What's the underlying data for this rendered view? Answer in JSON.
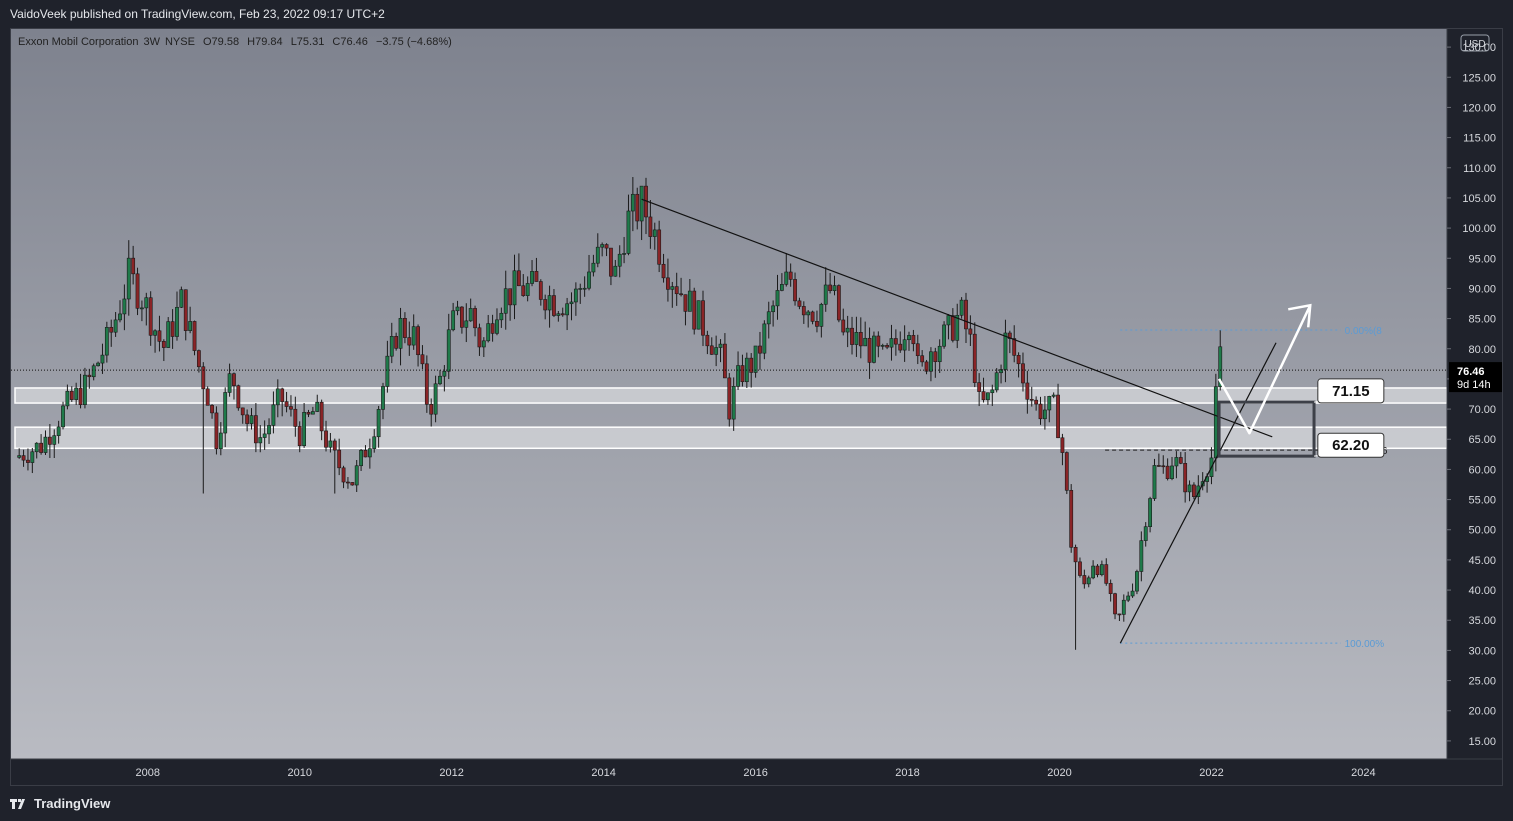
{
  "publication": {
    "text": "VaidoVeek published on TradingView.com, Feb 23, 2022 09:17 UTC+2"
  },
  "footer": {
    "brand": "TradingView",
    "logo_icon": "tradingview-logo-icon"
  },
  "symbol_bar": {
    "name": "Exxon Mobil Corporation",
    "interval": "3W",
    "exchange": "NYSE",
    "open": "O79.58",
    "high": "H79.84",
    "low": "L75.31",
    "close": "C76.46",
    "change": "−3.75 (−4.68%)"
  },
  "currency_button": "USD",
  "price_tag": {
    "value": "76.46",
    "countdown": "9d 14h"
  },
  "colors": {
    "bg_top": "#7e828e",
    "bg_bottom": "#b9bbc2",
    "up_candle": "#1f7a4a",
    "down_candle": "#8a2427",
    "zone_fill": "#d6d7db",
    "zone_stroke": "#ffffff",
    "trendline": "#111111",
    "projection_arrow": "#ffffff",
    "fib_level": "#5b9bd5",
    "axis_bg": "#1f222b",
    "axis_text": "#d7d9de"
  },
  "annotations": {
    "label_upper": "71.15",
    "label_lower": "62.20",
    "fib_0": "0.00%(8",
    "fib_382": "38.20%(6",
    "fib_100": "100.00%"
  },
  "chart_data": {
    "type": "candlestick",
    "title": "Exxon Mobil Corporation, 3W, NYSE",
    "xlabel": "",
    "ylabel": "",
    "x_ticks": [
      "2008",
      "2010",
      "2012",
      "2014",
      "2016",
      "2018",
      "2020",
      "2022",
      "2024"
    ],
    "y_ticks": [
      "15.00",
      "20.00",
      "25.00",
      "30.00",
      "35.00",
      "40.00",
      "45.00",
      "50.00",
      "55.00",
      "60.00",
      "65.00",
      "70.00",
      "75.00",
      "80.00",
      "85.00",
      "90.00",
      "95.00",
      "100.00",
      "105.00",
      "110.00",
      "115.00",
      "120.00",
      "125.00",
      "130.00"
    ],
    "ylim": [
      12,
      133
    ],
    "xlim": [
      2006.2,
      2025.1
    ],
    "grid": false,
    "price_line": 76.46,
    "close_anchors": [
      [
        2006.25,
        62
      ],
      [
        2006.6,
        64
      ],
      [
        2006.9,
        70
      ],
      [
        2007.2,
        74
      ],
      [
        2007.5,
        82
      ],
      [
        2007.75,
        92
      ],
      [
        2007.95,
        88
      ],
      [
        2008.2,
        80
      ],
      [
        2008.45,
        88
      ],
      [
        2008.65,
        78
      ],
      [
        2008.8,
        72
      ],
      [
        2008.9,
        65
      ],
      [
        2009.1,
        76
      ],
      [
        2009.3,
        68
      ],
      [
        2009.5,
        65
      ],
      [
        2009.75,
        72
      ],
      [
        2010.0,
        66
      ],
      [
        2010.2,
        70
      ],
      [
        2010.4,
        63
      ],
      [
        2010.55,
        60
      ],
      [
        2010.7,
        58
      ],
      [
        2010.95,
        66
      ],
      [
        2011.1,
        74
      ],
      [
        2011.3,
        84
      ],
      [
        2011.5,
        82
      ],
      [
        2011.6,
        76
      ],
      [
        2011.7,
        70
      ],
      [
        2011.85,
        75
      ],
      [
        2012.0,
        84
      ],
      [
        2012.25,
        86
      ],
      [
        2012.4,
        80
      ],
      [
        2012.6,
        88
      ],
      [
        2012.85,
        90
      ],
      [
        2013.15,
        90
      ],
      [
        2013.35,
        88
      ],
      [
        2013.6,
        88
      ],
      [
        2013.85,
        94
      ],
      [
        2014.0,
        96
      ],
      [
        2014.15,
        92
      ],
      [
        2014.3,
        101
      ],
      [
        2014.5,
        104
      ],
      [
        2014.65,
        100
      ],
      [
        2014.8,
        94
      ],
      [
        2015.0,
        90
      ],
      [
        2015.2,
        86
      ],
      [
        2015.4,
        82
      ],
      [
        2015.55,
        78
      ],
      [
        2015.65,
        70
      ],
      [
        2015.8,
        76
      ],
      [
        2016.0,
        78
      ],
      [
        2016.2,
        86
      ],
      [
        2016.45,
        92
      ],
      [
        2016.6,
        88
      ],
      [
        2016.8,
        86
      ],
      [
        2017.0,
        90
      ],
      [
        2017.15,
        82
      ],
      [
        2017.4,
        81
      ],
      [
        2017.7,
        78
      ],
      [
        2017.9,
        82
      ],
      [
        2018.05,
        86
      ],
      [
        2018.15,
        75
      ],
      [
        2018.3,
        80
      ],
      [
        2018.5,
        82
      ],
      [
        2018.7,
        86
      ],
      [
        2018.85,
        80
      ],
      [
        2018.95,
        70
      ],
      [
        2019.1,
        72
      ],
      [
        2019.3,
        82
      ],
      [
        2019.5,
        76
      ],
      [
        2019.7,
        70
      ],
      [
        2019.95,
        70
      ],
      [
        2020.05,
        62
      ],
      [
        2020.15,
        48
      ],
      [
        2020.3,
        40
      ],
      [
        2020.45,
        45
      ],
      [
        2020.6,
        42
      ],
      [
        2020.75,
        34
      ],
      [
        2020.85,
        38
      ],
      [
        2021.0,
        42
      ],
      [
        2021.1,
        50
      ],
      [
        2021.25,
        60
      ],
      [
        2021.4,
        60
      ],
      [
        2021.5,
        62
      ],
      [
        2021.65,
        58
      ],
      [
        2021.75,
        55
      ],
      [
        2021.9,
        60
      ],
      [
        2022.0,
        62
      ],
      [
        2022.05,
        70
      ],
      [
        2022.1,
        80
      ],
      [
        2022.14,
        76.46
      ]
    ],
    "wick_extremes": [
      {
        "x": 2008.75,
        "low": 56
      },
      {
        "x": 2010.45,
        "low": 56
      },
      {
        "x": 2020.2,
        "low": 30.1
      },
      {
        "x": 2014.5,
        "high": 104.76
      },
      {
        "x": 2022.1,
        "high": 83.1
      }
    ],
    "support_zones": [
      {
        "from": 71.0,
        "to": 73.5
      },
      {
        "from": 63.5,
        "to": 67.0
      }
    ],
    "trendlines": [
      {
        "points": [
          [
            2014.5,
            104.8
          ],
          [
            2022.8,
            65.4
          ]
        ]
      },
      {
        "points": [
          [
            2020.8,
            31.2
          ],
          [
            2022.85,
            81.0
          ]
        ]
      }
    ],
    "projection_path": [
      [
        2022.1,
        75.0
      ],
      [
        2022.5,
        66.0
      ],
      [
        2023.3,
        87.2
      ]
    ],
    "fib_levels": [
      {
        "label": "0.00%(8",
        "value": 83.1
      },
      {
        "label": "38.20%(6",
        "value": 63.2
      },
      {
        "label": "100.00%",
        "value": 31.2
      }
    ],
    "target_box": {
      "x_from": 2022.1,
      "x_to": 2023.35,
      "top": 71.15,
      "bottom": 62.2
    },
    "price_labels": [
      {
        "text": "71.15",
        "value": 71.15
      },
      {
        "text": "62.20",
        "value": 62.2
      }
    ]
  }
}
